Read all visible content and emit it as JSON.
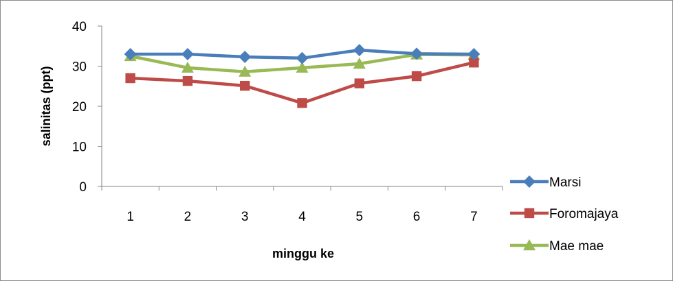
{
  "chart_data": {
    "type": "line",
    "xlabel": "minggu ke",
    "ylabel": "salinitas (ppt)",
    "categories": [
      "1",
      "2",
      "3",
      "4",
      "5",
      "6",
      "7"
    ],
    "ylim": [
      0,
      40
    ],
    "yticks": [
      0,
      10,
      20,
      30,
      40
    ],
    "grid": false,
    "legend_position": "right",
    "series": [
      {
        "name": "Marsi",
        "values": [
          33,
          33,
          32.3,
          32,
          34,
          33.1,
          33
        ],
        "color": "#4a7ebb",
        "marker": "diamond"
      },
      {
        "name": "Foromajaya",
        "values": [
          27,
          26.3,
          25.1,
          20.8,
          25.7,
          27.5,
          30.9
        ],
        "color": "#be4b48",
        "marker": "square"
      },
      {
        "name": "Mae mae",
        "values": [
          32.5,
          29.6,
          28.6,
          29.6,
          30.6,
          32.9,
          32.8
        ],
        "color": "#98b954",
        "marker": "triangle"
      }
    ]
  }
}
